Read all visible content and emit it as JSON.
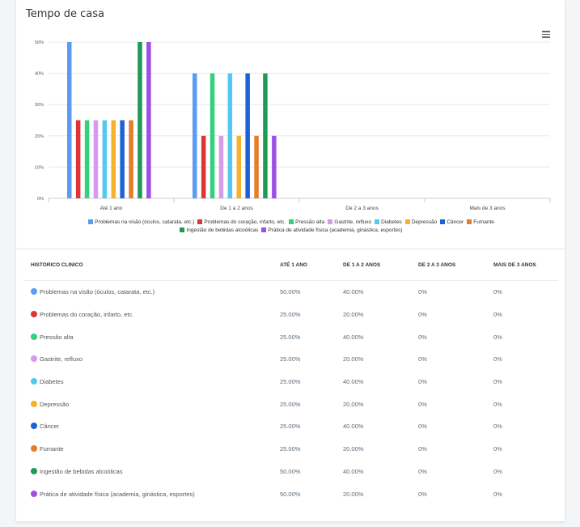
{
  "title": "Tempo de casa",
  "chart_data": {
    "type": "bar",
    "categories": [
      "Até 1 ano",
      "De 1 a 2 anos",
      "De 2 a 3 anos",
      "Mais de 3 anos"
    ],
    "ylim": [
      0,
      50
    ],
    "yticks": [
      "0%",
      "10%",
      "20%",
      "30%",
      "40%",
      "50%"
    ],
    "series": [
      {
        "name": "Problemas na visão (óculos, catarata, etc.)",
        "color": "#5b9bf3",
        "values": [
          50,
          40,
          0,
          0
        ]
      },
      {
        "name": "Problemas do coração, infarto, etc.",
        "color": "#dd3535",
        "values": [
          25,
          20,
          0,
          0
        ]
      },
      {
        "name": "Pressão alta",
        "color": "#34d07e",
        "values": [
          25,
          40,
          0,
          0
        ]
      },
      {
        "name": "Gastrite, refluxo",
        "color": "#d89bec",
        "values": [
          25,
          20,
          0,
          0
        ]
      },
      {
        "name": "Diabetes",
        "color": "#54c8f0",
        "values": [
          25,
          40,
          0,
          0
        ]
      },
      {
        "name": "Depressão",
        "color": "#f6b22c",
        "values": [
          25,
          20,
          0,
          0
        ]
      },
      {
        "name": "Câncer",
        "color": "#1d62d6",
        "values": [
          25,
          40,
          0,
          0
        ]
      },
      {
        "name": "Fumante",
        "color": "#e57d2a",
        "values": [
          25,
          20,
          0,
          0
        ]
      },
      {
        "name": "Ingestão de bebidas alcoólicas",
        "color": "#1e9a55",
        "values": [
          50,
          40,
          0,
          0
        ]
      },
      {
        "name": "Prática de atividade física (academia, ginástica, esportes)",
        "color": "#9c4fe6",
        "values": [
          50,
          20,
          0,
          0
        ]
      }
    ],
    "grid": true,
    "legend_position": "bottom"
  },
  "table": {
    "headers": [
      "HISTORICO CLINICO",
      "ATÉ 1 ANO",
      "DE 1 A 2 ANOS",
      "DE 2 A 3 ANOS",
      "MAIS DE 3 ANOS"
    ],
    "rows": [
      {
        "name": "Problemas na visão (óculos, catarata, etc.)",
        "color": "#5b9bf3",
        "v": [
          "50.00%",
          "40.00%",
          "0%",
          "0%"
        ]
      },
      {
        "name": "Problemas do coração, infarto, etc.",
        "color": "#dd3535",
        "v": [
          "25.00%",
          "20.00%",
          "0%",
          "0%"
        ]
      },
      {
        "name": "Pressão alta",
        "color": "#34d07e",
        "v": [
          "25.00%",
          "40.00%",
          "0%",
          "0%"
        ]
      },
      {
        "name": "Gastrite, refluxo",
        "color": "#d89bec",
        "v": [
          "25.00%",
          "20.00%",
          "0%",
          "0%"
        ]
      },
      {
        "name": "Diabetes",
        "color": "#54c8f0",
        "v": [
          "25.00%",
          "40.00%",
          "0%",
          "0%"
        ]
      },
      {
        "name": "Depressão",
        "color": "#f6b22c",
        "v": [
          "25.00%",
          "20.00%",
          "0%",
          "0%"
        ]
      },
      {
        "name": "Câncer",
        "color": "#1d62d6",
        "v": [
          "25.00%",
          "40.00%",
          "0%",
          "0%"
        ]
      },
      {
        "name": "Fumante",
        "color": "#e57d2a",
        "v": [
          "25.00%",
          "20.00%",
          "0%",
          "0%"
        ]
      },
      {
        "name": "Ingestão de bebidas alcoólicas",
        "color": "#1e9a55",
        "v": [
          "50.00%",
          "40.00%",
          "0%",
          "0%"
        ]
      },
      {
        "name": "Prática de atividade física (academia, ginástica, esportes)",
        "color": "#9c4fe6",
        "v": [
          "50.00%",
          "20.00%",
          "0%",
          "0%"
        ]
      }
    ]
  }
}
